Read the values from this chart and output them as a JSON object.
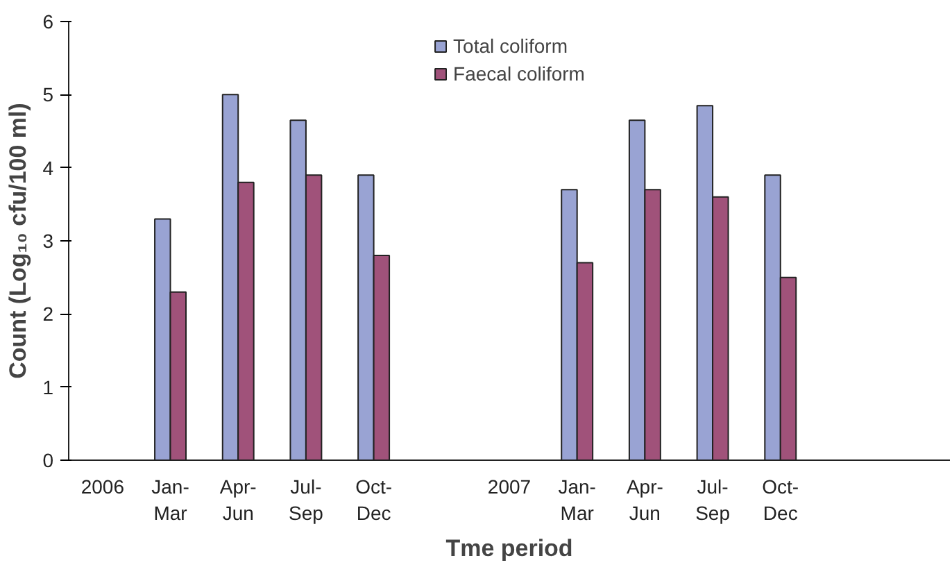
{
  "chart_data": {
    "type": "bar",
    "xlabel": "Tme period",
    "ylabel": "Count (Log₁₀ cfu/100 ml)",
    "categories": [
      "2006",
      "Jan-Mar",
      "Apr-Jun",
      "Jul-Sep",
      "Oct-Dec",
      null,
      "2007",
      "Jan-Mar",
      "Apr-Jun",
      "Jul-Sep",
      "Oct-Dec",
      null,
      null
    ],
    "series": [
      {
        "name": "Total coliform",
        "color": "#99a3d3",
        "values": [
          null,
          3.3,
          5.0,
          4.65,
          3.9,
          null,
          null,
          3.7,
          4.65,
          4.85,
          3.9,
          null,
          null
        ]
      },
      {
        "name": "Faecal coliform",
        "color": "#a0527a",
        "values": [
          null,
          2.3,
          3.8,
          3.9,
          2.8,
          null,
          null,
          2.7,
          3.7,
          3.6,
          2.5,
          null,
          null
        ]
      }
    ],
    "ylim": [
      0,
      6
    ],
    "yticks": [
      0,
      1,
      2,
      3,
      4,
      5,
      6
    ],
    "grid": false,
    "legend": "top"
  }
}
